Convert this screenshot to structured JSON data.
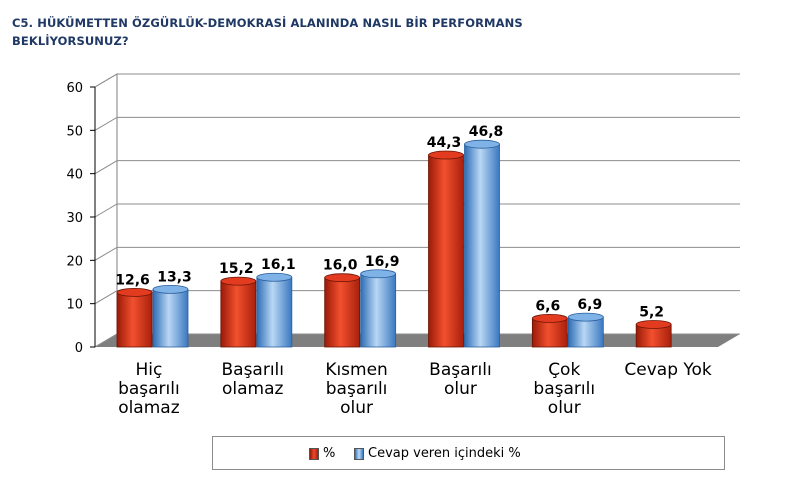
{
  "title": "C5. HÜKÜMETTEN ÖZGÜRLÜK-DEMOKRASİ ALANINDA NASIL BİR PERFORMANS BEKLİYORSUNUZ?",
  "legend": {
    "red_label": "%",
    "blue_label": "Cevap veren içindeki %"
  },
  "colors": {
    "red": "#e23b1f",
    "blue": "#5b9bd5",
    "floor": "#7f7f7f"
  },
  "chart_data": {
    "type": "bar",
    "title": "C5. HÜKÜMETTEN ÖZGÜRLÜK-DEMOKRASİ ALANINDA NASIL BİR PERFORMANS BEKLİYORSUNUZ?",
    "categories": [
      [
        "Hiç",
        "başarılı",
        "olamaz"
      ],
      [
        "Başarılı",
        "olamaz"
      ],
      [
        "Kısmen",
        "başarılı",
        "olur"
      ],
      [
        "Başarılı",
        "olur"
      ],
      [
        "Çok",
        "başarılı",
        "olur"
      ],
      [
        "Cevap Yok"
      ]
    ],
    "series": [
      {
        "name": "%",
        "values": [
          12.6,
          15.2,
          16.0,
          44.3,
          6.6,
          5.2
        ],
        "labels": [
          "12,6",
          "15,2",
          "16,0",
          "44,3",
          "6,6",
          "5,2"
        ]
      },
      {
        "name": "Cevap veren içindeki %",
        "values": [
          13.3,
          16.1,
          16.9,
          46.8,
          6.9,
          null
        ],
        "labels": [
          "13,3",
          "16,1",
          "16,9",
          "46,8",
          "6,9",
          ""
        ]
      }
    ],
    "yticks": [
      0,
      10,
      20,
      30,
      40,
      50,
      60
    ],
    "ylim": [
      0,
      60
    ],
    "grid": true,
    "legend_position": "bottom"
  }
}
